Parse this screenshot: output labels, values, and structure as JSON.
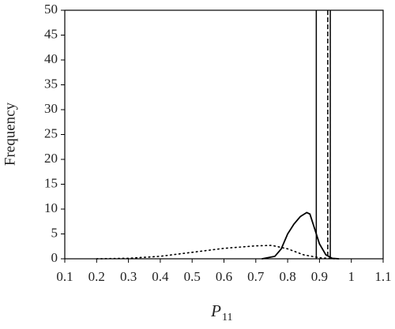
{
  "chart_data": {
    "type": "line",
    "y_label": "Frequency",
    "x_label": "P",
    "x_label_subscript": "11",
    "xlim": [
      0.1,
      1.1
    ],
    "xticks": [
      0.1,
      0.2,
      0.3,
      0.4,
      0.5,
      0.6,
      0.7,
      0.8,
      0.9,
      1,
      1.1
    ],
    "ylim": [
      0,
      50
    ],
    "yticks": [
      0,
      5,
      10,
      15,
      20,
      25,
      30,
      35,
      40,
      45,
      50
    ],
    "grid": false,
    "series": [
      {
        "color": "#000000",
        "style": "solid",
        "x": [
          0.72,
          0.76,
          0.78,
          0.8,
          0.82,
          0.84,
          0.86,
          0.87,
          0.88,
          0.9,
          0.92,
          0.94,
          0.96
        ],
        "values": [
          0,
          0.5,
          2,
          5,
          7,
          8.5,
          9.3,
          9,
          7,
          3,
          0.8,
          0.1,
          0
        ]
      },
      {
        "color": "#000000",
        "style": "dotted",
        "x": [
          0.2,
          0.3,
          0.4,
          0.5,
          0.6,
          0.7,
          0.75,
          0.8,
          0.85,
          0.9,
          0.95
        ],
        "values": [
          0,
          0.1,
          0.5,
          1.3,
          2.1,
          2.6,
          2.7,
          2,
          0.8,
          0.2,
          0
        ]
      }
    ],
    "vlines": [
      {
        "x": 0.89,
        "style": "solid"
      },
      {
        "x": 0.926,
        "style": "dashed"
      },
      {
        "x": 0.934,
        "style": "solid"
      }
    ]
  }
}
